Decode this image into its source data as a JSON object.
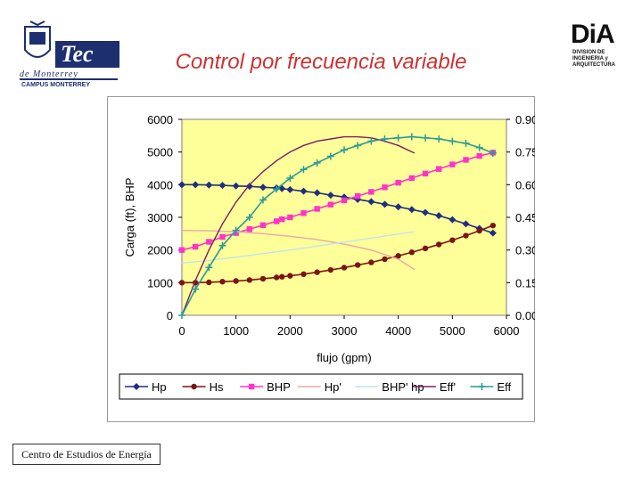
{
  "header": {
    "title": "Control por frecuencia variable",
    "left_logo": {
      "word": "Tec",
      "subtitle": "de Monterrey",
      "campus": "CAMPUS MONTERREY"
    },
    "right_logo": {
      "word": "DiA",
      "lines": [
        "DIVISION DE",
        "INGENIERIA y",
        "ARQUITECTURA"
      ]
    }
  },
  "footer": {
    "label": "Centro de Estudios de Energía"
  },
  "chart_data": {
    "type": "line",
    "xlabel": "flujo (gpm)",
    "ylabel": "Carga (ft), BHP",
    "xlim": [
      0,
      6000
    ],
    "ylim": [
      0,
      6000
    ],
    "y2lim": [
      0,
      0.9
    ],
    "x_ticks": [
      "0",
      "1000",
      "2000",
      "3000",
      "4000",
      "5000",
      "6000"
    ],
    "y_ticks": [
      "0",
      "1000",
      "2000",
      "3000",
      "4000",
      "5000",
      "6000"
    ],
    "y2_ticks": [
      "0.00",
      "0.15",
      "0.30",
      "0.45",
      "0.60",
      "0.75",
      "0.90"
    ],
    "legend_position": "bottom",
    "plot_background": "#ffff99",
    "series": [
      {
        "name": "Hp",
        "axis": "left",
        "color": "#1f2f7f",
        "marker": "diamond",
        "x": [
          0,
          250,
          500,
          750,
          1000,
          1250,
          1500,
          1750,
          1850,
          2000,
          2250,
          2500,
          2750,
          3000,
          3250,
          3500,
          3750,
          4000,
          4250,
          4500,
          4750,
          5000,
          5250,
          5500,
          5750
        ],
        "y": [
          4000,
          4000,
          3990,
          3980,
          3960,
          3950,
          3920,
          3900,
          3880,
          3850,
          3800,
          3750,
          3680,
          3620,
          3550,
          3480,
          3400,
          3320,
          3240,
          3150,
          3050,
          2930,
          2800,
          2660,
          2520
        ]
      },
      {
        "name": "Hs",
        "axis": "left",
        "color": "#7a1515",
        "marker": "circle",
        "x": [
          0,
          250,
          500,
          750,
          1000,
          1250,
          1500,
          1750,
          1850,
          2000,
          2250,
          2500,
          2750,
          3000,
          3250,
          3500,
          3750,
          4000,
          4250,
          4500,
          4750,
          5000,
          5250,
          5500,
          5750
        ],
        "y": [
          1000,
          1000,
          1010,
          1030,
          1050,
          1080,
          1120,
          1160,
          1180,
          1210,
          1260,
          1320,
          1390,
          1460,
          1540,
          1620,
          1720,
          1820,
          1930,
          2050,
          2170,
          2300,
          2440,
          2590,
          2750
        ]
      },
      {
        "name": "BHP",
        "axis": "left",
        "color": "#ff33cc",
        "marker": "square",
        "x": [
          0,
          250,
          500,
          750,
          1000,
          1250,
          1500,
          1750,
          1850,
          2000,
          2250,
          2500,
          2750,
          3000,
          3250,
          3500,
          3750,
          4000,
          4250,
          4500,
          4750,
          5000,
          5250,
          5500,
          5750
        ],
        "y": [
          2000,
          2100,
          2250,
          2400,
          2520,
          2640,
          2760,
          2880,
          2940,
          3000,
          3130,
          3260,
          3390,
          3520,
          3650,
          3780,
          3920,
          4060,
          4200,
          4340,
          4480,
          4620,
          4760,
          4880,
          4980
        ]
      },
      {
        "name": "Hp'",
        "axis": "left",
        "color": "#e8a8a8",
        "marker": "none",
        "x": [
          0,
          500,
          1000,
          1500,
          2000,
          2500,
          3000,
          3500,
          4000,
          4300
        ],
        "y": [
          2600,
          2590,
          2560,
          2500,
          2420,
          2320,
          2180,
          2000,
          1720,
          1400
        ]
      },
      {
        "name": "BHP' hp",
        "axis": "left",
        "color": "#bfe4ee",
        "marker": "none",
        "x": [
          0,
          500,
          1000,
          1500,
          2000,
          2500,
          3000,
          3500,
          4000,
          4300
        ],
        "y": [
          1600,
          1680,
          1780,
          1890,
          2000,
          2120,
          2240,
          2360,
          2490,
          2560
        ]
      },
      {
        "name": "Eff'",
        "axis": "right",
        "color": "#7a1f6b",
        "marker": "none",
        "x": [
          0,
          250,
          500,
          750,
          1000,
          1250,
          1500,
          1750,
          2000,
          2250,
          2500,
          2750,
          3000,
          3250,
          3500,
          3750,
          4000,
          4300
        ],
        "y": [
          0,
          0.16,
          0.3,
          0.42,
          0.52,
          0.6,
          0.66,
          0.71,
          0.75,
          0.78,
          0.8,
          0.81,
          0.82,
          0.82,
          0.815,
          0.8,
          0.78,
          0.745
        ]
      },
      {
        "name": "Eff",
        "axis": "right",
        "color": "#2a9a9a",
        "marker": "plus",
        "x": [
          0,
          250,
          500,
          750,
          1000,
          1250,
          1500,
          1750,
          2000,
          2250,
          2500,
          2750,
          3000,
          3250,
          3500,
          3750,
          4000,
          4250,
          4500,
          4750,
          5000,
          5250,
          5500,
          5750
        ],
        "y": [
          0,
          0.12,
          0.22,
          0.32,
          0.39,
          0.45,
          0.53,
          0.58,
          0.63,
          0.67,
          0.7,
          0.73,
          0.76,
          0.78,
          0.8,
          0.81,
          0.815,
          0.82,
          0.815,
          0.81,
          0.8,
          0.79,
          0.77,
          0.745
        ]
      }
    ]
  }
}
